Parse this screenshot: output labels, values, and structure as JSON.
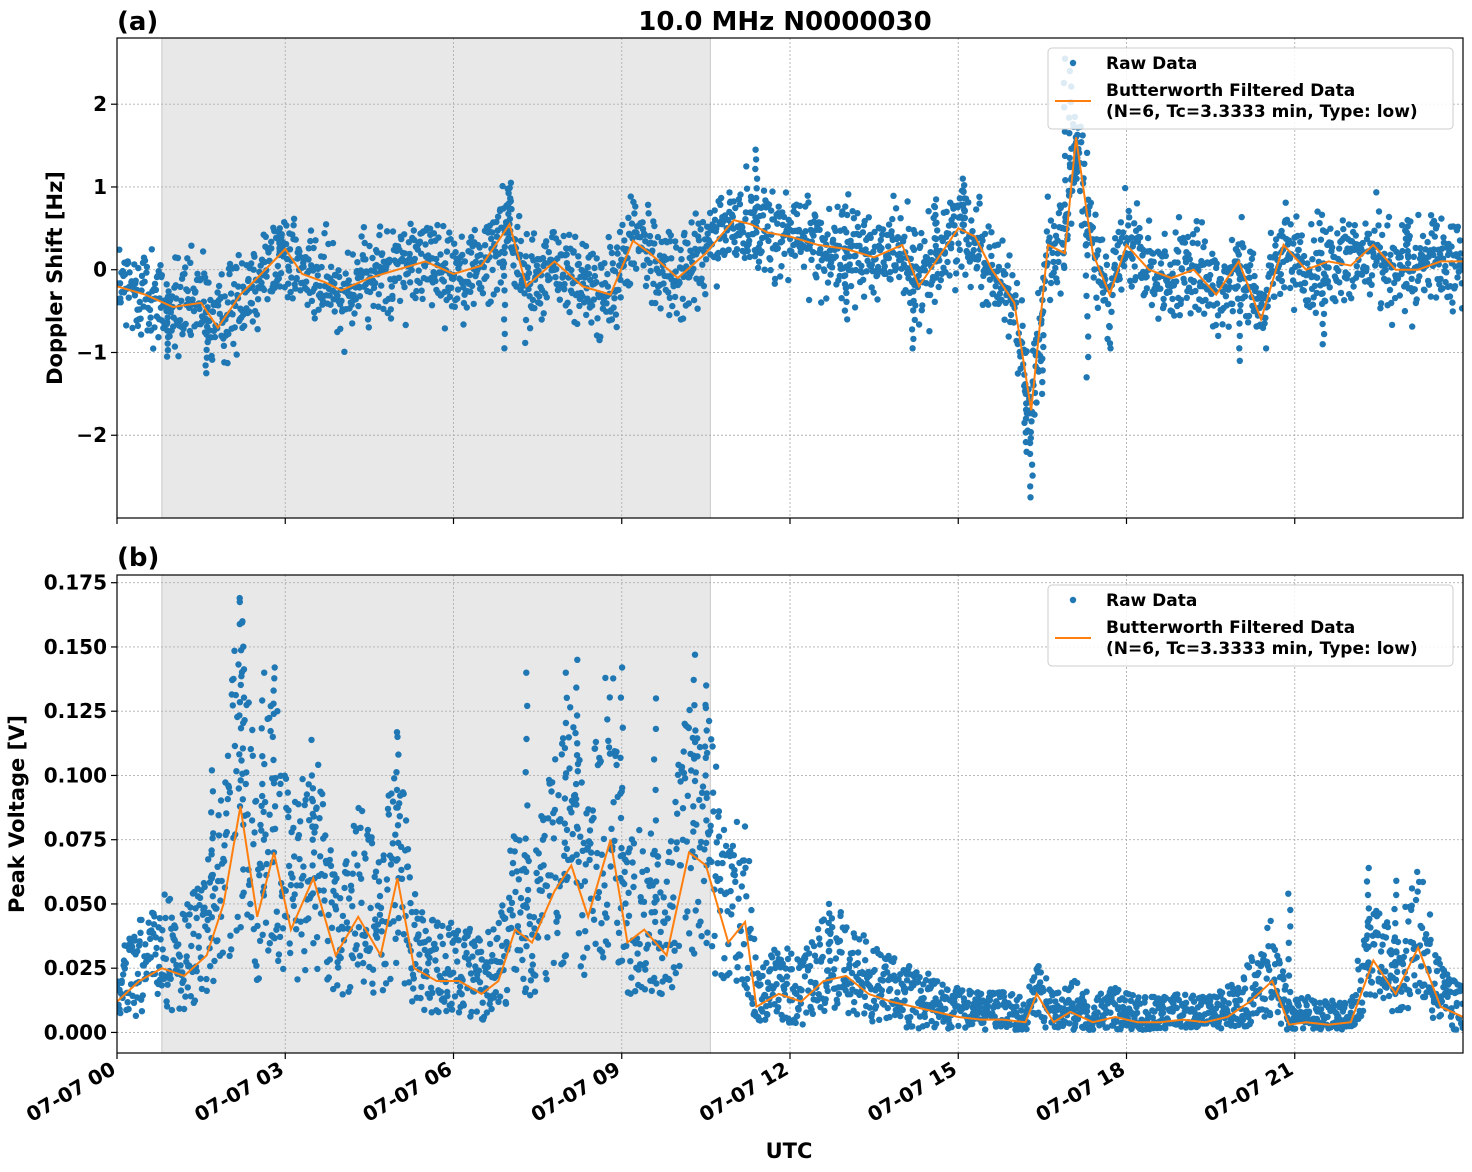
{
  "figure": {
    "title": "10.0 MHz N0000030",
    "xlabel": "UTC",
    "colors": {
      "raw": "#1f77b4",
      "filtered": "#ff7f0e",
      "shade": "#e8e8e8",
      "grid": "#b0b0b0"
    }
  },
  "chart_data": [
    {
      "type": "scatter",
      "panel_label": "(a)",
      "title": "10.0 MHz N0000030",
      "xlabel": "",
      "ylabel": "Doppler Shift [Hz]",
      "xlim_hours": [
        0,
        24
      ],
      "ylim": [
        -3.0,
        2.8
      ],
      "xticks": [
        {
          "value": 0,
          "label": "07-07 00"
        },
        {
          "value": 3,
          "label": "07-07 03"
        },
        {
          "value": 6,
          "label": "07-07 06"
        },
        {
          "value": 9,
          "label": "07-07 09"
        },
        {
          "value": 12,
          "label": "07-07 12"
        },
        {
          "value": 15,
          "label": "07-07 15"
        },
        {
          "value": 18,
          "label": "07-07 18"
        },
        {
          "value": 21,
          "label": "07-07 21"
        }
      ],
      "yticks": [
        {
          "value": -2,
          "label": "−2"
        },
        {
          "value": -1,
          "label": "−1"
        },
        {
          "value": 0,
          "label": "0"
        },
        {
          "value": 1,
          "label": "1"
        },
        {
          "value": 2,
          "label": "2"
        }
      ],
      "shaded_span_hours": [
        0.8,
        10.58
      ],
      "grid": true,
      "legend": {
        "placement": "upper-right",
        "entries": [
          "Raw Data",
          "Butterworth Filtered Data",
          "(N=6, Tc=3.3333 min, Type: low)"
        ]
      },
      "series": [
        {
          "name": "Butterworth Filtered Data",
          "kind": "line",
          "x": [
            0,
            0.5,
            1.0,
            1.5,
            1.8,
            2.2,
            2.5,
            3.0,
            3.3,
            3.7,
            4.0,
            4.5,
            5.0,
            5.5,
            6.0,
            6.5,
            7.0,
            7.3,
            7.8,
            8.3,
            8.8,
            9.2,
            9.5,
            10.0,
            10.5,
            11.0,
            11.3,
            11.6,
            12.0,
            12.5,
            13.0,
            13.5,
            14.0,
            14.3,
            14.6,
            15.0,
            15.3,
            15.6,
            16.0,
            16.3,
            16.6,
            16.9,
            17.1,
            17.4,
            17.7,
            18.0,
            18.4,
            18.8,
            19.2,
            19.6,
            20.0,
            20.4,
            20.8,
            21.2,
            21.6,
            22.0,
            22.4,
            22.8,
            23.2,
            23.6,
            24.0
          ],
          "y": [
            -0.2,
            -0.3,
            -0.45,
            -0.4,
            -0.7,
            -0.3,
            -0.1,
            0.25,
            -0.05,
            -0.15,
            -0.25,
            -0.1,
            0.0,
            0.1,
            -0.05,
            0.05,
            0.55,
            -0.2,
            0.1,
            -0.2,
            -0.3,
            0.35,
            0.2,
            -0.1,
            0.2,
            0.6,
            0.55,
            0.45,
            0.4,
            0.3,
            0.25,
            0.15,
            0.3,
            -0.2,
            0.1,
            0.5,
            0.4,
            0.0,
            -0.4,
            -1.7,
            0.3,
            0.2,
            1.6,
            0.2,
            -0.3,
            0.3,
            0.0,
            -0.1,
            0.0,
            -0.3,
            0.1,
            -0.6,
            0.3,
            0.0,
            0.1,
            0.05,
            0.3,
            0.0,
            0.0,
            0.1,
            0.1
          ]
        },
        {
          "name": "Raw Data",
          "kind": "scatter",
          "x": [
            0.9,
            1.6,
            2.9,
            6.9,
            7.0,
            11.4,
            13.0,
            14.2,
            14.6,
            15.1,
            16.2,
            16.3,
            16.4,
            16.5,
            16.9,
            17.0,
            17.1,
            17.3,
            20.0,
            21.5,
            23.0
          ],
          "y": [
            -1.05,
            -1.25,
            0.5,
            -0.95,
            1.05,
            1.45,
            -0.6,
            -0.95,
            0.85,
            1.1,
            -2.2,
            -2.75,
            -1.0,
            -1.5,
            2.55,
            2.4,
            1.1,
            -1.3,
            -1.1,
            -0.9,
            0.6
          ]
        }
      ]
    },
    {
      "type": "scatter",
      "panel_label": "(b)",
      "title": "",
      "xlabel": "UTC",
      "ylabel": "Peak Voltage [V]",
      "xlim_hours": [
        0,
        24
      ],
      "ylim": [
        -0.008,
        0.178
      ],
      "xticks": [
        {
          "value": 0,
          "label": "07-07 00"
        },
        {
          "value": 3,
          "label": "07-07 03"
        },
        {
          "value": 6,
          "label": "07-07 06"
        },
        {
          "value": 9,
          "label": "07-07 09"
        },
        {
          "value": 12,
          "label": "07-07 12"
        },
        {
          "value": 15,
          "label": "07-07 15"
        },
        {
          "value": 18,
          "label": "07-07 18"
        },
        {
          "value": 21,
          "label": "07-07 21"
        }
      ],
      "yticks": [
        {
          "value": 0.0,
          "label": "0.000"
        },
        {
          "value": 0.025,
          "label": "0.025"
        },
        {
          "value": 0.05,
          "label": "0.050"
        },
        {
          "value": 0.075,
          "label": "0.075"
        },
        {
          "value": 0.1,
          "label": "0.100"
        },
        {
          "value": 0.125,
          "label": "0.125"
        },
        {
          "value": 0.15,
          "label": "0.150"
        },
        {
          "value": 0.175,
          "label": "0.175"
        }
      ],
      "shaded_span_hours": [
        0.8,
        10.58
      ],
      "grid": true,
      "legend": {
        "placement": "upper-right",
        "entries": [
          "Raw Data",
          "Butterworth Filtered Data",
          "(N=6, Tc=3.3333 min, Type: low)"
        ]
      },
      "series": [
        {
          "name": "Butterworth Filtered Data",
          "kind": "line",
          "x": [
            0,
            0.4,
            0.8,
            1.2,
            1.6,
            1.9,
            2.2,
            2.5,
            2.8,
            3.1,
            3.5,
            3.9,
            4.3,
            4.7,
            5.0,
            5.3,
            5.7,
            6.1,
            6.5,
            6.8,
            7.1,
            7.4,
            7.8,
            8.1,
            8.4,
            8.8,
            9.1,
            9.4,
            9.8,
            10.2,
            10.5,
            10.9,
            11.2,
            11.4,
            11.8,
            12.2,
            12.6,
            13.0,
            13.4,
            13.8,
            14.2,
            14.6,
            15.0,
            15.4,
            15.8,
            16.2,
            16.4,
            16.7,
            17.0,
            17.4,
            17.8,
            18.2,
            18.6,
            19.0,
            19.4,
            19.8,
            20.2,
            20.6,
            20.9,
            21.2,
            21.6,
            22.0,
            22.4,
            22.8,
            23.2,
            23.6,
            24.0
          ],
          "y": [
            0.012,
            0.02,
            0.025,
            0.022,
            0.03,
            0.05,
            0.088,
            0.045,
            0.07,
            0.04,
            0.06,
            0.03,
            0.045,
            0.03,
            0.06,
            0.025,
            0.02,
            0.02,
            0.015,
            0.02,
            0.04,
            0.035,
            0.055,
            0.065,
            0.045,
            0.075,
            0.035,
            0.04,
            0.03,
            0.07,
            0.065,
            0.035,
            0.043,
            0.01,
            0.015,
            0.012,
            0.02,
            0.022,
            0.015,
            0.012,
            0.01,
            0.008,
            0.006,
            0.005,
            0.005,
            0.004,
            0.015,
            0.004,
            0.008,
            0.004,
            0.006,
            0.004,
            0.004,
            0.005,
            0.004,
            0.006,
            0.012,
            0.02,
            0.003,
            0.004,
            0.003,
            0.004,
            0.028,
            0.015,
            0.033,
            0.01,
            0.006
          ]
        },
        {
          "name": "Raw Data",
          "kind": "scatter",
          "x": [
            1.7,
            2.2,
            2.25,
            2.6,
            2.8,
            3.5,
            5.0,
            7.3,
            8.0,
            8.2,
            9.0,
            9.6,
            10.3,
            10.5,
            12.7,
            20.9,
            22.3,
            22.8
          ],
          "y": [
            0.102,
            0.169,
            0.16,
            0.14,
            0.142,
            0.1,
            0.115,
            0.14,
            0.14,
            0.145,
            0.142,
            0.13,
            0.147,
            0.135,
            0.05,
            0.054,
            0.064,
            0.059
          ]
        }
      ]
    }
  ]
}
